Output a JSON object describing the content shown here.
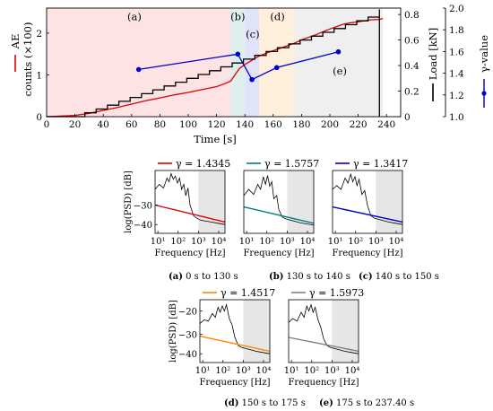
{
  "chart_data": [
    {
      "type": "line",
      "xlabel": "Time [s]",
      "ylabel_left_lines": [
        "AE",
        "counts (×100)"
      ],
      "ylabel_right1": "Load [kN]",
      "ylabel_right2": "γ-value",
      "xlim": [
        0,
        250
      ],
      "ylim_left": [
        0,
        2.6
      ],
      "ylim_right1": [
        0,
        0.85
      ],
      "ylim_right2": [
        1.0,
        2.0
      ],
      "x_ticks": [
        0,
        20,
        40,
        60,
        80,
        100,
        120,
        140,
        160,
        180,
        200,
        220,
        240
      ],
      "y_ticks_left": [
        0,
        1,
        2
      ],
      "y_ticks_right1": [
        0,
        0.2,
        0.4,
        0.6,
        0.8
      ],
      "y_ticks_right2": [
        "1.0",
        "1.2",
        "1.4",
        "1.6",
        "1.8",
        "2.0"
      ],
      "regions": [
        {
          "label": "(a)",
          "start": 0,
          "end": 130,
          "color": "#fde3e3",
          "label_x": 62,
          "label_y": 2.4
        },
        {
          "label": "(b)",
          "start": 130,
          "end": 140,
          "color": "#def0ee",
          "label_x": 135,
          "label_y": 2.4
        },
        {
          "label": "(c)",
          "start": 140,
          "end": 150,
          "color": "#e0e3fa",
          "label_x": 145.5,
          "label_y": 1.98
        },
        {
          "label": "(d)",
          "start": 150,
          "end": 175,
          "color": "#fff0de",
          "label_x": 163,
          "label_y": 2.4
        },
        {
          "label": "(e)",
          "start": 175,
          "end": 237.4,
          "color": "#efefef",
          "label_x": 207,
          "label_y": 1.1
        }
      ],
      "series": [
        {
          "name": "AE counts",
          "axis": "left",
          "color": "#dd0000",
          "x": [
            0,
            20,
            30,
            40,
            50,
            60,
            70,
            80,
            90,
            100,
            110,
            120,
            125,
            130,
            133,
            136,
            140,
            145,
            150,
            155,
            160,
            165,
            170,
            175,
            180,
            185,
            190,
            195,
            200,
            205,
            210,
            215,
            220,
            225,
            230,
            235,
            237.4
          ],
          "values": [
            0,
            0.03,
            0.08,
            0.15,
            0.22,
            0.3,
            0.38,
            0.45,
            0.52,
            0.58,
            0.65,
            0.72,
            0.78,
            0.85,
            1.0,
            1.15,
            1.25,
            1.35,
            1.45,
            1.52,
            1.58,
            1.64,
            1.7,
            1.76,
            1.84,
            1.9,
            1.96,
            2.03,
            2.1,
            2.16,
            2.22,
            2.25,
            2.27,
            2.3,
            2.32,
            2.33,
            2.35
          ]
        },
        {
          "name": "Load",
          "axis": "right1",
          "color": "#000000",
          "step_x": [
            0,
            27,
            35,
            43,
            51,
            59,
            67,
            75,
            83,
            91,
            99,
            107,
            115,
            123,
            131,
            139,
            147,
            155,
            163,
            171,
            179,
            187,
            195,
            203,
            211,
            219,
            227,
            235
          ],
          "step_y": [
            0,
            0.03,
            0.06,
            0.09,
            0.12,
            0.15,
            0.18,
            0.21,
            0.24,
            0.27,
            0.3,
            0.33,
            0.36,
            0.39,
            0.42,
            0.45,
            0.48,
            0.51,
            0.54,
            0.57,
            0.6,
            0.63,
            0.66,
            0.69,
            0.72,
            0.75,
            0.78,
            0.81
          ],
          "end_x": 235,
          "end_y_top": 0.84
        },
        {
          "name": "γ-value",
          "axis": "right2",
          "color": "#0000cc",
          "x": [
            65,
            135,
            145,
            162.5,
            206
          ],
          "values": [
            1.4345,
            1.5757,
            1.3417,
            1.4517,
            1.5973
          ]
        }
      ]
    },
    {
      "type": "line",
      "caption_label": "(a)",
      "caption_text": "0 s to 130 s",
      "legend": "γ = 1.4345",
      "fit_color": "#dd0000",
      "xlabel": "Frequency [Hz]",
      "ylabel": "log(PSD) [dB]",
      "x_ticks": [
        "10¹",
        "10²",
        "10³",
        "10⁴"
      ],
      "y_ticks": [
        "−30",
        "−40"
      ],
      "show_ylabel": true
    },
    {
      "type": "line",
      "caption_label": "(b)",
      "caption_text": "130 s to 140 s",
      "legend": "γ = 1.5757",
      "fit_color": "#008080",
      "xlabel": "Frequency [Hz]",
      "x_ticks": [
        "10¹",
        "10²",
        "10³",
        "10⁴"
      ],
      "show_ylabel": false
    },
    {
      "type": "line",
      "caption_label": "(c)",
      "caption_text": "140 s to 150 s",
      "legend": "γ = 1.3417",
      "fit_color": "#0000cc",
      "xlabel": "Frequency [Hz]",
      "x_ticks": [
        "10¹",
        "10²",
        "10³",
        "10⁴"
      ],
      "show_ylabel": false
    },
    {
      "type": "line",
      "caption_label": "(d)",
      "caption_text": "150 s to 175 s",
      "legend": "γ = 1.4517",
      "fit_color": "#ff8800",
      "xlabel": "Frequency [Hz]",
      "ylabel": "log(PSD) [dB]",
      "x_ticks": [
        "10¹",
        "10²",
        "10³",
        "10⁴"
      ],
      "y_ticks": [
        "−20",
        "−30",
        "−40"
      ],
      "show_ylabel": true
    },
    {
      "type": "line",
      "caption_label": "(e)",
      "caption_text": "175 s to 237.40 s",
      "legend": "γ = 1.5973",
      "fit_color": "#808080",
      "xlabel": "Frequency [Hz]",
      "x_ticks": [
        "10¹",
        "10²",
        "10³",
        "10⁴"
      ],
      "show_ylabel": false
    }
  ]
}
